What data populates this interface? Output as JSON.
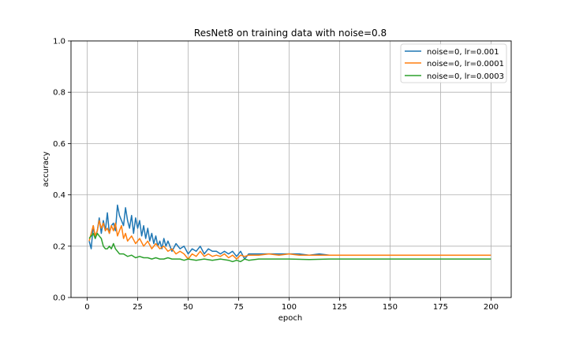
{
  "chart_data": {
    "type": "line",
    "title": "ResNet8 on training data with noise=0.8",
    "xlabel": "epoch",
    "ylabel": "accuracy",
    "xlim": [
      -8,
      210
    ],
    "ylim": [
      0.0,
      1.0
    ],
    "xticks": [
      0,
      25,
      50,
      75,
      100,
      125,
      150,
      175,
      200
    ],
    "xtick_labels": [
      "0",
      "25",
      "50",
      "75",
      "100",
      "125",
      "150",
      "175",
      "200"
    ],
    "yticks": [
      0.0,
      0.2,
      0.4,
      0.6,
      0.8,
      1.0
    ],
    "ytick_labels": [
      "0.0",
      "0.2",
      "0.4",
      "0.6",
      "0.8",
      "1.0"
    ],
    "grid": true,
    "legend_position": "upper right",
    "series": [
      {
        "name": "noise=0, lr=0.001",
        "color": "#1f77b4",
        "x": [
          1,
          2,
          3,
          4,
          5,
          6,
          7,
          8,
          9,
          10,
          11,
          12,
          13,
          14,
          15,
          16,
          17,
          18,
          19,
          20,
          21,
          22,
          23,
          24,
          25,
          26,
          27,
          28,
          29,
          30,
          31,
          32,
          33,
          34,
          35,
          36,
          37,
          38,
          39,
          40,
          42,
          44,
          46,
          48,
          50,
          52,
          54,
          56,
          58,
          60,
          62,
          64,
          66,
          68,
          70,
          72,
          74,
          76,
          78,
          80,
          85,
          90,
          95,
          100,
          105,
          110,
          115,
          120,
          125,
          130,
          140,
          150,
          160,
          170,
          180,
          190,
          200
        ],
        "y": [
          0.22,
          0.19,
          0.28,
          0.23,
          0.26,
          0.31,
          0.25,
          0.3,
          0.26,
          0.33,
          0.25,
          0.28,
          0.29,
          0.26,
          0.36,
          0.32,
          0.3,
          0.28,
          0.35,
          0.3,
          0.27,
          0.32,
          0.25,
          0.31,
          0.27,
          0.3,
          0.24,
          0.28,
          0.23,
          0.27,
          0.22,
          0.25,
          0.21,
          0.24,
          0.2,
          0.22,
          0.19,
          0.23,
          0.2,
          0.22,
          0.18,
          0.21,
          0.19,
          0.2,
          0.17,
          0.19,
          0.18,
          0.2,
          0.17,
          0.19,
          0.18,
          0.18,
          0.17,
          0.18,
          0.17,
          0.18,
          0.16,
          0.18,
          0.15,
          0.17,
          0.17,
          0.17,
          0.17,
          0.17,
          0.17,
          0.165,
          0.17,
          0.165,
          0.165,
          0.165,
          0.165,
          0.165,
          0.165,
          0.165,
          0.165,
          0.165,
          0.165
        ]
      },
      {
        "name": "noise=0, lr=0.0001",
        "color": "#ff7f0e",
        "x": [
          1,
          2,
          3,
          4,
          5,
          6,
          7,
          8,
          9,
          10,
          11,
          12,
          13,
          14,
          15,
          16,
          17,
          18,
          19,
          20,
          22,
          24,
          26,
          28,
          30,
          32,
          34,
          36,
          38,
          40,
          42,
          44,
          46,
          48,
          50,
          52,
          54,
          56,
          58,
          60,
          62,
          64,
          66,
          68,
          70,
          72,
          74,
          76,
          78,
          80,
          85,
          90,
          95,
          100,
          105,
          110,
          115,
          120,
          125,
          130,
          140,
          150,
          160,
          170,
          180,
          190,
          200
        ],
        "y": [
          0.22,
          0.25,
          0.28,
          0.24,
          0.26,
          0.3,
          0.27,
          0.29,
          0.26,
          0.27,
          0.25,
          0.28,
          0.26,
          0.29,
          0.24,
          0.26,
          0.28,
          0.23,
          0.25,
          0.22,
          0.24,
          0.21,
          0.23,
          0.2,
          0.22,
          0.19,
          0.21,
          0.19,
          0.2,
          0.18,
          0.19,
          0.17,
          0.18,
          0.17,
          0.15,
          0.17,
          0.16,
          0.18,
          0.16,
          0.17,
          0.16,
          0.165,
          0.16,
          0.17,
          0.155,
          0.165,
          0.15,
          0.165,
          0.16,
          0.165,
          0.165,
          0.17,
          0.165,
          0.17,
          0.165,
          0.165,
          0.165,
          0.165,
          0.165,
          0.165,
          0.165,
          0.165,
          0.165,
          0.165,
          0.165,
          0.165,
          0.165
        ]
      },
      {
        "name": "noise=0, lr=0.0003",
        "color": "#2ca02c",
        "x": [
          1,
          2,
          3,
          4,
          5,
          6,
          7,
          8,
          9,
          10,
          11,
          12,
          13,
          14,
          15,
          16,
          18,
          20,
          22,
          24,
          26,
          28,
          30,
          32,
          34,
          36,
          38,
          40,
          42,
          44,
          46,
          48,
          50,
          54,
          58,
          62,
          66,
          70,
          72,
          74,
          76,
          78,
          80,
          85,
          90,
          100,
          110,
          120,
          130,
          140,
          150,
          160,
          170,
          180,
          190,
          200
        ],
        "y": [
          0.23,
          0.24,
          0.25,
          0.23,
          0.25,
          0.24,
          0.23,
          0.2,
          0.19,
          0.19,
          0.2,
          0.19,
          0.21,
          0.19,
          0.18,
          0.17,
          0.17,
          0.16,
          0.165,
          0.155,
          0.16,
          0.155,
          0.155,
          0.15,
          0.155,
          0.15,
          0.15,
          0.155,
          0.15,
          0.15,
          0.15,
          0.145,
          0.15,
          0.145,
          0.15,
          0.145,
          0.15,
          0.145,
          0.14,
          0.145,
          0.14,
          0.15,
          0.145,
          0.15,
          0.15,
          0.15,
          0.148,
          0.15,
          0.15,
          0.15,
          0.15,
          0.15,
          0.15,
          0.15,
          0.15,
          0.15
        ]
      }
    ]
  }
}
